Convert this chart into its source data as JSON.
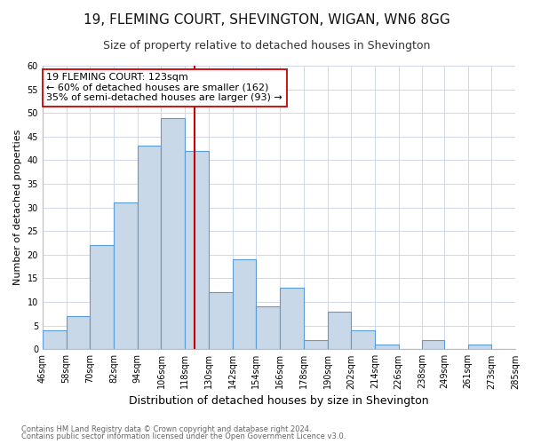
{
  "title": "19, FLEMING COURT, SHEVINGTON, WIGAN, WN6 8GG",
  "subtitle": "Size of property relative to detached houses in Shevington",
  "xlabel": "Distribution of detached houses by size in Shevington",
  "ylabel": "Number of detached properties",
  "bin_edges": [
    46,
    58,
    70,
    82,
    94,
    106,
    118,
    130,
    142,
    154,
    166,
    178,
    190,
    202,
    214,
    226,
    238,
    249,
    261,
    273,
    285
  ],
  "bar_heights": [
    4,
    7,
    22,
    31,
    43,
    49,
    42,
    12,
    19,
    9,
    13,
    2,
    8,
    4,
    1,
    0,
    2,
    0,
    1,
    0
  ],
  "bar_color": "#c8d8e8",
  "bar_edge_color": "#5b9bd5",
  "property_size": 123,
  "vline_color": "#cc0000",
  "annotation_title": "19 FLEMING COURT: 123sqm",
  "annotation_line1": "← 60% of detached houses are smaller (162)",
  "annotation_line2": "35% of semi-detached houses are larger (93) →",
  "annotation_box_color": "#ffffff",
  "annotation_box_edge": "#cc0000",
  "ylim": [
    0,
    60
  ],
  "yticks": [
    0,
    5,
    10,
    15,
    20,
    25,
    30,
    35,
    40,
    45,
    50,
    55,
    60
  ],
  "footnote1": "Contains HM Land Registry data © Crown copyright and database right 2024.",
  "footnote2": "Contains public sector information licensed under the Open Government Licence v3.0.",
  "background_color": "#ffffff",
  "grid_color": "#d0d8e8",
  "title_fontsize": 11,
  "subtitle_fontsize": 9,
  "xlabel_fontsize": 9,
  "ylabel_fontsize": 8,
  "tick_fontsize": 7,
  "annotation_fontsize": 8,
  "footnote_fontsize": 6
}
